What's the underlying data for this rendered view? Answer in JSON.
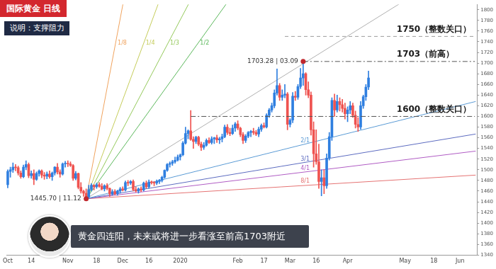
{
  "chart_data": {
    "type": "candlestick",
    "title": "国际黄金 日线",
    "subtitle": "说明：支撑阻力",
    "caption": "黄金四连阳，未来或将进一步看涨至前高1703附近",
    "categories": [
      "Oct",
      null,
      null,
      null,
      null,
      null,
      null,
      null,
      null,
      "14",
      null,
      null,
      null,
      null,
      null,
      null,
      null,
      null,
      null,
      null,
      null,
      null,
      null,
      "Nov",
      null,
      null,
      null,
      null,
      null,
      null,
      null,
      null,
      null,
      null,
      "18",
      null,
      null,
      null,
      null,
      null,
      null,
      null,
      null,
      null,
      "Dec",
      null,
      null,
      null,
      null,
      null,
      null,
      null,
      null,
      null,
      "16",
      null,
      null,
      null,
      null,
      null,
      null,
      null,
      null,
      null,
      null,
      null,
      "2020",
      null,
      null,
      null,
      null,
      null,
      null,
      null,
      null,
      null,
      null,
      null,
      null,
      null,
      null,
      null,
      null,
      null,
      null,
      null,
      null,
      null,
      "Feb",
      null,
      null,
      null,
      null,
      null,
      null,
      null,
      null,
      null,
      "17",
      null,
      null,
      null,
      null,
      null,
      null,
      null,
      null,
      null,
      "Mar",
      null,
      null,
      null,
      null,
      null,
      null,
      null,
      null,
      null,
      "16",
      null,
      null,
      null,
      null,
      null,
      null,
      null,
      null,
      null,
      null,
      null,
      "Apr",
      null,
      null,
      null,
      null,
      null,
      null,
      null,
      null,
      null,
      null,
      null,
      null,
      null,
      null,
      null,
      null,
      null,
      null,
      null,
      null,
      null,
      "May",
      null,
      null,
      null,
      null,
      null,
      null,
      null,
      null,
      null,
      null,
      "18",
      null,
      null,
      null,
      null,
      null,
      null,
      null,
      null,
      null,
      "Jun",
      null,
      null,
      null,
      null,
      null,
      null
    ],
    "open": [
      1472,
      1497,
      1500,
      1505,
      1504,
      1494,
      1487,
      1505,
      1510,
      1489,
      1493,
      1482,
      1493,
      1498,
      1490,
      1488,
      1492,
      1487,
      1494,
      1505,
      1496,
      1492,
      1511,
      1512,
      1511,
      1508,
      1484,
      1493,
      1467,
      1460,
      1456,
      1449,
      1463,
      1471,
      1468,
      1472,
      1469,
      1464,
      1470,
      1465,
      1455,
      1459,
      1455,
      1460,
      1464,
      1462,
      1476,
      1475,
      1478,
      1463,
      1460,
      1464,
      1462,
      1475,
      1468,
      1477,
      1476,
      1475,
      1478,
      1480,
      1486,
      1499,
      1510,
      1512,
      1515,
      1518,
      1524,
      1528,
      1550,
      1568,
      1573,
      1557,
      1553,
      1561,
      1548,
      1542,
      1546,
      1555,
      1551,
      1558,
      1560,
      1556,
      1558,
      1562,
      1580,
      1570,
      1568,
      1578,
      1586,
      1578,
      1566,
      1555,
      1563,
      1570,
      1572,
      1570,
      1567,
      1576,
      1583,
      1580,
      1602,
      1612,
      1620,
      1644,
      1658,
      1636,
      1640,
      1642,
      1585,
      1593,
      1638,
      1636,
      1656,
      1672,
      1680,
      1650,
      1640,
      1575,
      1530,
      1515,
      1478,
      1485,
      1470,
      1522,
      1562,
      1630,
      1612,
      1628,
      1622,
      1615,
      1605,
      1612,
      1620,
      1602,
      1585,
      1580,
      1620,
      1637,
      1655,
      null,
      null,
      null,
      null,
      null,
      null,
      null,
      null,
      null,
      null,
      null,
      null,
      null,
      null,
      null,
      null,
      null,
      null,
      null,
      null,
      null,
      null,
      null,
      null,
      null,
      null,
      null,
      null,
      null,
      null,
      null,
      null,
      null,
      null,
      null,
      null,
      null,
      null,
      null,
      null,
      null
    ],
    "high": [
      1500,
      1505,
      1513,
      1510,
      1507,
      1498,
      1509,
      1517,
      1513,
      1498,
      1500,
      1496,
      1500,
      1500,
      1495,
      1496,
      1498,
      1496,
      1506,
      1512,
      1500,
      1513,
      1516,
      1517,
      1515,
      1510,
      1497,
      1494,
      1476,
      1462,
      1464,
      1471,
      1474,
      1472,
      1475,
      1476,
      1474,
      1472,
      1474,
      1466,
      1463,
      1463,
      1462,
      1467,
      1468,
      1479,
      1480,
      1480,
      1481,
      1468,
      1466,
      1468,
      1477,
      1479,
      1481,
      1479,
      1478,
      1481,
      1482,
      1488,
      1500,
      1512,
      1515,
      1518,
      1524,
      1528,
      1530,
      1553,
      1580,
      1575,
      1611,
      1562,
      1563,
      1563,
      1552,
      1551,
      1558,
      1560,
      1562,
      1561,
      1565,
      1561,
      1567,
      1584,
      1585,
      1578,
      1584,
      1589,
      1592,
      1580,
      1570,
      1566,
      1572,
      1574,
      1578,
      1574,
      1580,
      1586,
      1588,
      1605,
      1615,
      1625,
      1650,
      1689,
      1662,
      1650,
      1660,
      1645,
      1596,
      1645,
      1647,
      1660,
      1690,
      1703.28,
      1682,
      1665,
      1646,
      1590,
      1575,
      1548,
      1500,
      1500,
      1530,
      1570,
      1635,
      1642,
      1640,
      1635,
      1632,
      1625,
      1618,
      1628,
      1625,
      1610,
      1598,
      1628,
      1640,
      1660,
      1685,
      null,
      null,
      null,
      null,
      null,
      null,
      null,
      null,
      null,
      null,
      null,
      null,
      null,
      null,
      null,
      null,
      null,
      null,
      null,
      null,
      null,
      null,
      null,
      null,
      null,
      null,
      null,
      null,
      null,
      null,
      null,
      null,
      null,
      null,
      null,
      null,
      null,
      null,
      null,
      null,
      null
    ],
    "low": [
      1466,
      1486,
      1495,
      1498,
      1490,
      1484,
      1485,
      1500,
      1485,
      1484,
      1472,
      1480,
      1488,
      1485,
      1482,
      1483,
      1484,
      1480,
      1490,
      1492,
      1486,
      1490,
      1505,
      1506,
      1506,
      1480,
      1481,
      1464,
      1456,
      1450,
      1445.7,
      1447,
      1460,
      1462,
      1465,
      1467,
      1462,
      1460,
      1462,
      1450,
      1452,
      1453,
      1452,
      1456,
      1460,
      1460,
      1470,
      1472,
      1460,
      1458,
      1456,
      1459,
      1460,
      1465,
      1465,
      1473,
      1470,
      1472,
      1474,
      1477,
      1484,
      1497,
      1505,
      1508,
      1512,
      1516,
      1518,
      1526,
      1548,
      1558,
      1555,
      1540,
      1549,
      1545,
      1536,
      1538,
      1544,
      1549,
      1548,
      1549,
      1551,
      1549,
      1552,
      1560,
      1566,
      1564,
      1566,
      1572,
      1575,
      1562,
      1549,
      1551,
      1560,
      1562,
      1566,
      1564,
      1562,
      1572,
      1578,
      1578,
      1598,
      1608,
      1616,
      1640,
      1630,
      1630,
      1635,
      1575,
      1580,
      1588,
      1630,
      1632,
      1652,
      1658,
      1640,
      1635,
      1565,
      1505,
      1510,
      1465,
      1451,
      1455,
      1465,
      1518,
      1555,
      1600,
      1608,
      1610,
      1608,
      1595,
      1590,
      1605,
      1598,
      1578,
      1572,
      1576,
      1615,
      1630,
      1650,
      null,
      null,
      null,
      null,
      null,
      null,
      null,
      null,
      null,
      null,
      null,
      null,
      null,
      null,
      null,
      null,
      null,
      null,
      null,
      null,
      null,
      null,
      null,
      null,
      null,
      null,
      null,
      null,
      null,
      null,
      null,
      null,
      null,
      null,
      null,
      null,
      null,
      null,
      null,
      null,
      null
    ],
    "close": [
      1497,
      1500,
      1505,
      1504,
      1494,
      1487,
      1505,
      1510,
      1489,
      1493,
      1482,
      1493,
      1498,
      1490,
      1488,
      1492,
      1487,
      1494,
      1505,
      1496,
      1492,
      1511,
      1512,
      1511,
      1508,
      1484,
      1493,
      1467,
      1460,
      1456,
      1449,
      1463,
      1471,
      1468,
      1472,
      1469,
      1464,
      1470,
      1465,
      1455,
      1459,
      1455,
      1460,
      1464,
      1462,
      1476,
      1475,
      1478,
      1463,
      1460,
      1464,
      1462,
      1475,
      1468,
      1477,
      1476,
      1475,
      1478,
      1480,
      1486,
      1499,
      1510,
      1512,
      1515,
      1518,
      1524,
      1528,
      1550,
      1568,
      1573,
      1557,
      1553,
      1561,
      1548,
      1542,
      1546,
      1555,
      1551,
      1558,
      1560,
      1556,
      1558,
      1562,
      1580,
      1570,
      1568,
      1578,
      1586,
      1578,
      1566,
      1555,
      1563,
      1570,
      1572,
      1570,
      1567,
      1576,
      1583,
      1580,
      1602,
      1612,
      1620,
      1644,
      1658,
      1636,
      1640,
      1642,
      1585,
      1593,
      1638,
      1636,
      1656,
      1672,
      1680,
      1650,
      1640,
      1575,
      1530,
      1515,
      1478,
      1485,
      1470,
      1522,
      1562,
      1630,
      1612,
      1628,
      1622,
      1615,
      1605,
      1612,
      1620,
      1602,
      1585,
      1580,
      1620,
      1637,
      1655,
      1672,
      null,
      null,
      null,
      null,
      null,
      null,
      null,
      null,
      null,
      null,
      null,
      null,
      null,
      null,
      null,
      null,
      null,
      null,
      null,
      null,
      null,
      null,
      null,
      null,
      null,
      null,
      null,
      null,
      null,
      null,
      null,
      null,
      null,
      null,
      null,
      null,
      null,
      null,
      null,
      null,
      null
    ],
    "colors": [
      "#2f7fe0",
      "#2f7fe0",
      "#2f7fe0",
      "#ef5350",
      "#ef5350",
      "#ef5350",
      "#2f7fe0",
      "#2f7fe0",
      "#ef5350",
      "#2f7fe0",
      "#ef5350",
      "#2f7fe0",
      "#2f7fe0",
      "#ef5350",
      "#ef5350",
      "#2f7fe0",
      "#ef5350",
      "#2f7fe0",
      "#2f7fe0",
      "#ef5350",
      "#ef5350",
      "#2f7fe0",
      "#2f7fe0",
      "#ef5350",
      "#ef5350",
      "#ef5350",
      "#2f7fe0",
      "#ef5350",
      "#ef5350",
      "#ef5350",
      "#ef5350",
      "#2f7fe0",
      "#2f7fe0",
      "#ef5350",
      "#2f7fe0",
      "#ef5350",
      "#ef5350",
      "#2f7fe0",
      "#ef5350",
      "#ef5350",
      "#2f7fe0",
      "#ef5350",
      "#2f7fe0",
      "#2f7fe0",
      "#ef5350",
      "#2f7fe0",
      "#ef5350",
      "#2f7fe0",
      "#ef5350",
      "#ef5350",
      "#2f7fe0",
      "#ef5350",
      "#2f7fe0",
      "#ef5350",
      "#2f7fe0",
      "#ef5350",
      "#ef5350",
      "#2f7fe0",
      "#2f7fe0",
      "#2f7fe0",
      "#2f7fe0",
      "#2f7fe0",
      "#2f7fe0",
      "#2f7fe0",
      "#2f7fe0",
      "#2f7fe0",
      "#2f7fe0",
      "#2f7fe0",
      "#2f7fe0",
      "#2f7fe0",
      "#ef5350",
      "#ef5350",
      "#2f7fe0",
      "#ef5350",
      "#ef5350",
      "#2f7fe0",
      "#2f7fe0",
      "#ef5350",
      "#2f7fe0",
      "#2f7fe0",
      "#ef5350",
      "#2f7fe0",
      "#2f7fe0",
      "#2f7fe0",
      "#ef5350",
      "#ef5350",
      "#2f7fe0",
      "#2f7fe0",
      "#ef5350",
      "#ef5350",
      "#ef5350",
      "#2f7fe0",
      "#2f7fe0",
      "#2f7fe0",
      "#ef5350",
      "#ef5350",
      "#2f7fe0",
      "#2f7fe0",
      "#ef5350",
      "#2f7fe0",
      "#2f7fe0",
      "#2f7fe0",
      "#2f7fe0",
      "#2f7fe0",
      "#ef5350",
      "#2f7fe0",
      "#2f7fe0",
      "#ef5350",
      "#2f7fe0",
      "#2f7fe0",
      "#ef5350",
      "#2f7fe0",
      "#2f7fe0",
      "#2f7fe0",
      "#ef5350",
      "#ef5350",
      "#ef5350",
      "#ef5350",
      "#ef5350",
      "#ef5350",
      "#2f7fe0",
      "#ef5350",
      "#2f7fe0",
      "#2f7fe0",
      "#2f7fe0",
      "#ef5350",
      "#2f7fe0",
      "#ef5350",
      "#ef5350",
      "#ef5350",
      "#2f7fe0",
      "#2f7fe0",
      "#ef5350",
      "#ef5350",
      "#ef5350",
      "#2f7fe0",
      "#2f7fe0",
      "#2f7fe0",
      "#2f7fe0",
      null,
      null,
      null,
      null,
      null,
      null,
      null,
      null,
      null,
      null,
      null,
      null,
      null,
      null,
      null,
      null,
      null,
      null,
      null,
      null,
      null,
      null,
      null,
      null,
      null,
      null,
      null,
      null,
      null,
      null,
      null,
      null,
      null,
      null,
      null,
      null,
      null,
      null,
      null,
      null,
      null
    ],
    "ylim": [
      1340,
      1810
    ],
    "yticks": [
      1340,
      1360,
      1380,
      1400,
      1420,
      1440,
      1460,
      1480,
      1500,
      1520,
      1540,
      1560,
      1580,
      1600,
      1620,
      1640,
      1660,
      1680,
      1700,
      1720,
      1740,
      1760,
      1780,
      1800
    ],
    "grid": false,
    "fan": {
      "origin_index": 30,
      "origin_value": 1445.7,
      "end_index": 179,
      "lines": [
        {
          "label": "1/8",
          "color": "#f0a35e",
          "end_value": 5309
        },
        {
          "label": "1/4",
          "color": "#c5cc5a",
          "end_value": 3420
        },
        {
          "label": "1/3",
          "color": "#94c95b",
          "end_value": 2834
        },
        {
          "label": "1/2",
          "color": "#5cb85c",
          "end_value": 2461
        },
        {
          "color": "#b0b0b0",
          "end_value": 1900
        },
        {
          "label": "2/1",
          "color": "#5b9bd5",
          "end_value": 1628
        },
        {
          "label": "3/1",
          "color": "#5c6bc0",
          "end_value": 1567
        },
        {
          "label": "4/1",
          "color": "#b05cc4",
          "end_value": 1535
        },
        {
          "label": "8/1",
          "color": "#e57373",
          "end_value": 1490
        }
      ]
    },
    "levels": [
      {
        "value": 1750,
        "label": "1750（整数关口）",
        "start_index": 106,
        "line_style": "dashed",
        "color": "#9e9e9e"
      },
      {
        "value": 1703,
        "label": "1703（前高）",
        "start_index": 113,
        "line_style": "dashdot",
        "color": "#555555"
      },
      {
        "value": 1600,
        "label": "1600（整数关口）",
        "start_index": 70,
        "line_style": "dashdot",
        "color": "#555555"
      }
    ],
    "points": [
      {
        "index": 30,
        "value": 1445.7,
        "label": "1445.70 | 11.12",
        "color": "#c0272d"
      },
      {
        "index": 113,
        "value": 1703.28,
        "label": "1703.28 | 03.09",
        "color": "#c0272d"
      }
    ]
  }
}
